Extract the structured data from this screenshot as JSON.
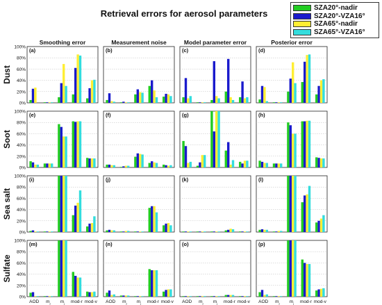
{
  "title": "Retrieval errors for aerosol parameters",
  "legend": [
    {
      "name": "SZA20°-nadir",
      "color": "#22cc22"
    },
    {
      "name": "SZA20°-VZA16°",
      "color": "#1a1acc"
    },
    {
      "name": "SZA65°-nadir",
      "color": "#ffee33"
    },
    {
      "name": "SZA65°-VZA16°",
      "color": "#33dddd"
    }
  ],
  "columns": [
    "Smoothing error",
    "Measurement noise",
    "Model parameter error",
    "Posterior error"
  ],
  "rows": [
    "Dust",
    "Soot",
    "Sea salt",
    "Sulfate"
  ],
  "panel_letters": [
    "(a)",
    "(b)",
    "(c)",
    "(d)",
    "(e)",
    "(f)",
    "(g)",
    "(h)",
    "(i)",
    "(j)",
    "(k)",
    "(l)",
    "(m)",
    "(n)",
    "(o)",
    "(p)"
  ],
  "y_ticks": [
    "0%",
    "20%",
    "40%",
    "60%",
    "80%",
    "100%"
  ],
  "x_tick_labels": [
    "AOD",
    "m",
    "m",
    "mod-r",
    "mod-v"
  ],
  "x_tick_subscripts": [
    "",
    "r",
    "i",
    "",
    ""
  ],
  "chart_data": {
    "type": "bar",
    "categories": [
      "AOD",
      "m_r",
      "m_i",
      "mod-r",
      "mod-v"
    ],
    "ylim": [
      0,
      100
    ],
    "grid": true,
    "legend_position": "top-right",
    "series_names": [
      "SZA20°-nadir",
      "SZA20°-VZA16°",
      "SZA65°-nadir",
      "SZA65°-VZA16°"
    ],
    "panels": [
      {
        "letter": "(a)",
        "row": "Dust",
        "column": "Smoothing error",
        "values": [
          [
            5,
            25,
            27,
            0
          ],
          [
            1,
            1,
            1,
            1
          ],
          [
            10,
            35,
            69,
            30
          ],
          [
            15,
            62,
            86,
            84
          ],
          [
            8,
            26,
            40,
            41
          ]
        ]
      },
      {
        "letter": "(b)",
        "row": "Dust",
        "column": "Measurement noise",
        "values": [
          [
            5,
            17,
            3,
            2
          ],
          [
            1,
            2,
            1,
            1
          ],
          [
            15,
            24,
            19,
            18
          ],
          [
            30,
            40,
            22,
            10
          ],
          [
            11,
            16,
            15,
            12
          ]
        ]
      },
      {
        "letter": "(c)",
        "row": "Dust",
        "column": "Model parameter error",
        "values": [
          [
            10,
            44,
            8,
            12
          ],
          [
            1,
            1,
            1,
            1
          ],
          [
            5,
            74,
            12,
            8
          ],
          [
            20,
            78,
            10,
            5
          ],
          [
            10,
            38,
            8,
            10
          ]
        ]
      },
      {
        "letter": "(d)",
        "row": "Dust",
        "column": "Posterior error",
        "values": [
          [
            6,
            30,
            28,
            3
          ],
          [
            1,
            1,
            1,
            1
          ],
          [
            20,
            43,
            72,
            35
          ],
          [
            37,
            73,
            85,
            86
          ],
          [
            15,
            30,
            40,
            42
          ]
        ]
      },
      {
        "letter": "(e)",
        "row": "Soot",
        "column": "Smoothing error",
        "values": [
          [
            11,
            9,
            5,
            5
          ],
          [
            7,
            7,
            7,
            7
          ],
          [
            77,
            72,
            55,
            55
          ],
          [
            82,
            81,
            82,
            82
          ],
          [
            17,
            16,
            16,
            16
          ]
        ]
      },
      {
        "letter": "(f)",
        "row": "Soot",
        "column": "Measurement noise",
        "values": [
          [
            5,
            5,
            4,
            4
          ],
          [
            1,
            2,
            3,
            3
          ],
          [
            19,
            25,
            24,
            23
          ],
          [
            8,
            11,
            9,
            8
          ],
          [
            5,
            4,
            3,
            4
          ]
        ]
      },
      {
        "letter": "(g)",
        "row": "Soot",
        "column": "Model parameter error",
        "values": [
          [
            47,
            38,
            8,
            10
          ],
          [
            3,
            9,
            22,
            22
          ],
          [
            100,
            64,
            100,
            100
          ],
          [
            30,
            45,
            5,
            13
          ],
          [
            10,
            7,
            12,
            12
          ]
        ]
      },
      {
        "letter": "(h)",
        "row": "Soot",
        "column": "Posterior error",
        "values": [
          [
            12,
            10,
            8,
            8
          ],
          [
            7,
            7,
            7,
            7
          ],
          [
            80,
            75,
            60,
            60
          ],
          [
            82,
            82,
            83,
            83
          ],
          [
            18,
            17,
            16,
            16
          ]
        ]
      },
      {
        "letter": "(i)",
        "row": "Sea salt",
        "column": "Smoothing error",
        "values": [
          [
            2,
            3,
            1,
            1
          ],
          [
            1,
            1,
            1,
            1
          ],
          [
            100,
            100,
            100,
            100
          ],
          [
            30,
            47,
            52,
            74
          ],
          [
            10,
            15,
            16,
            28
          ]
        ]
      },
      {
        "letter": "(j)",
        "row": "Sea salt",
        "column": "Measurement noise",
        "values": [
          [
            3,
            4,
            3,
            3
          ],
          [
            1,
            1,
            2,
            2
          ],
          [
            1,
            1,
            1,
            1
          ],
          [
            43,
            46,
            46,
            35
          ],
          [
            12,
            15,
            16,
            12
          ]
        ]
      },
      {
        "letter": "(k)",
        "row": "Sea salt",
        "column": "Model parameter error",
        "values": [
          [
            1,
            1,
            1,
            1
          ],
          [
            1,
            1,
            1,
            1
          ],
          [
            1,
            1,
            1,
            1
          ],
          [
            3,
            4,
            6,
            5
          ],
          [
            1,
            1,
            1,
            1
          ]
        ]
      },
      {
        "letter": "(l)",
        "row": "Sea salt",
        "column": "Posterior error",
        "values": [
          [
            4,
            5,
            4,
            4
          ],
          [
            1,
            1,
            2,
            2
          ],
          [
            100,
            100,
            100,
            100
          ],
          [
            53,
            65,
            67,
            82
          ],
          [
            17,
            20,
            24,
            30
          ]
        ]
      },
      {
        "letter": "(m)",
        "row": "Sulfate",
        "column": "Smoothing error",
        "values": [
          [
            7,
            8,
            1,
            1
          ],
          [
            1,
            1,
            1,
            1
          ],
          [
            100,
            100,
            100,
            100
          ],
          [
            44,
            37,
            34,
            34
          ],
          [
            9,
            8,
            8,
            9
          ]
        ]
      },
      {
        "letter": "(n)",
        "row": "Sulfate",
        "column": "Measurement noise",
        "values": [
          [
            7,
            11,
            3,
            4
          ],
          [
            2,
            2,
            2,
            2
          ],
          [
            1,
            1,
            1,
            1
          ],
          [
            49,
            47,
            47,
            47
          ],
          [
            9,
            12,
            13,
            13
          ]
        ]
      },
      {
        "letter": "(o)",
        "row": "Sulfate",
        "column": "Model parameter error",
        "values": [
          [
            1,
            1,
            1,
            1
          ],
          [
            1,
            1,
            1,
            1
          ],
          [
            1,
            1,
            1,
            1
          ],
          [
            3,
            3,
            3,
            3
          ],
          [
            1,
            1,
            1,
            1
          ]
        ]
      },
      {
        "letter": "(p)",
        "row": "Sulfate",
        "column": "Posterior error",
        "values": [
          [
            8,
            12,
            3,
            4
          ],
          [
            1,
            1,
            1,
            1
          ],
          [
            100,
            100,
            100,
            100
          ],
          [
            66,
            60,
            58,
            58
          ],
          [
            11,
            13,
            14,
            15
          ]
        ]
      }
    ]
  }
}
